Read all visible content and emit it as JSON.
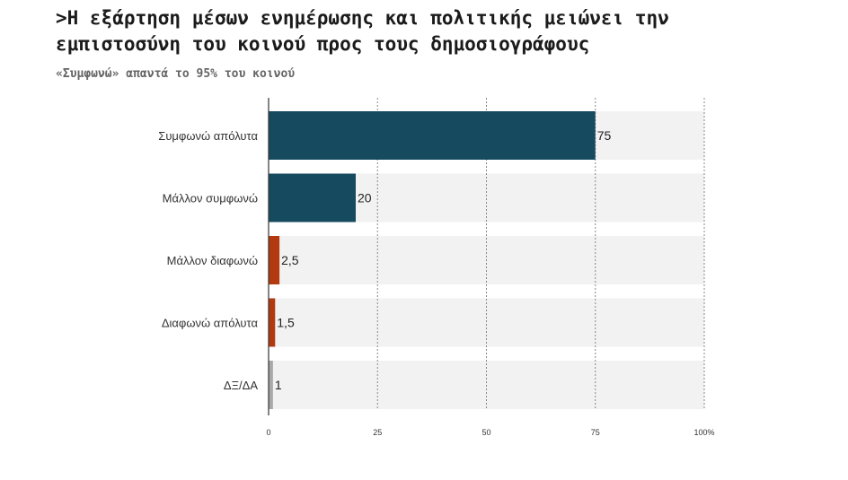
{
  "header": {
    "title": ">Η εξάρτηση μέσων ενημέρωσης και πολιτικής μειώνει την\n εμπιστοσύνη του κοινού προς τους δημοσιογράφους",
    "subtitle": "«Συμφωνώ» απαντά το 95% του κοινού"
  },
  "colors": {
    "agree": "#164b5f",
    "disagree": "#b33a10",
    "neutral": "#a9a9a9",
    "band": "#f2f2f2",
    "grid": "#888888"
  },
  "chart_data": {
    "type": "bar",
    "orientation": "horizontal",
    "title": "",
    "xlabel": "",
    "ylabel": "",
    "xlim": [
      0,
      100
    ],
    "grid": true,
    "categories": [
      "Συμφωνώ απόλυτα",
      "Μάλλον συμφωνώ",
      "Μάλλον διαφωνώ",
      "Διαφωνώ απόλυτα",
      "ΔΞ/ΔΑ"
    ],
    "values": [
      75,
      20,
      2.5,
      1.5,
      1
    ],
    "value_labels": [
      "75",
      "20",
      "2,5",
      "1,5",
      "1"
    ],
    "bar_colors": [
      "#164b5f",
      "#164b5f",
      "#b33a10",
      "#b33a10",
      "#a9a9a9"
    ],
    "x_ticks": [
      0,
      25,
      50,
      75,
      100
    ],
    "x_tick_labels": [
      "0",
      "25",
      "50",
      "75",
      "100%"
    ]
  }
}
